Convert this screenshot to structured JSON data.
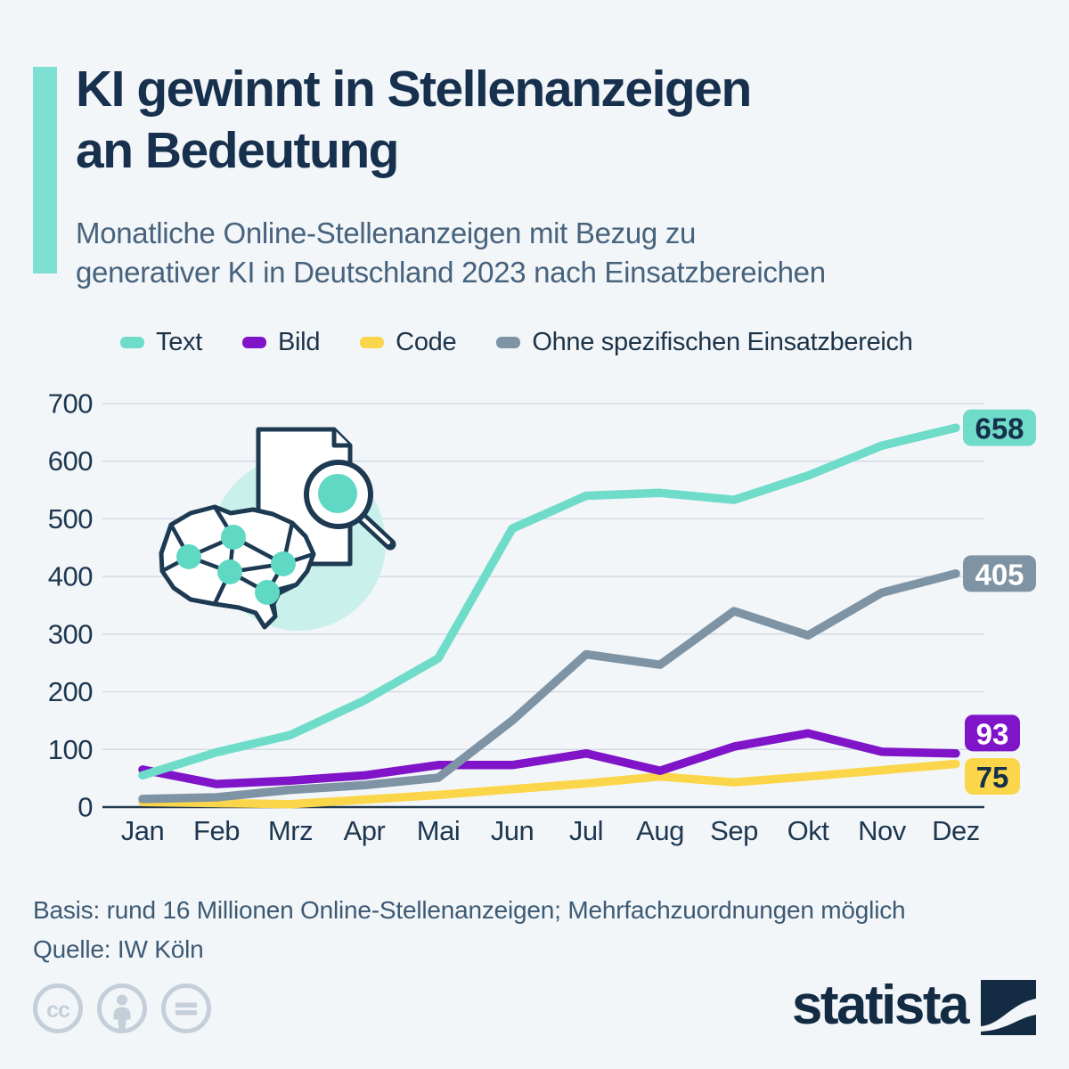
{
  "header": {
    "title_lines": [
      "KI gewinnt in Stellenanzeigen",
      "an Bedeutung"
    ],
    "subtitle_lines": [
      "Monatliche Online-Stellenanzeigen mit Bezug zu",
      "generativer KI in Deutschland 2023 nach Einsatzbereichen"
    ],
    "accent_color": "#7de0d2"
  },
  "chart_data": {
    "type": "line",
    "title": "KI gewinnt in Stellenanzeigen an Bedeutung",
    "subtitle": "Monatliche Online-Stellenanzeigen mit Bezug zu generativer KI in Deutschland 2023 nach Einsatzbereichen",
    "categories": [
      "Jan",
      "Feb",
      "Mrz",
      "Apr",
      "Mai",
      "Jun",
      "Jul",
      "Aug",
      "Sep",
      "Okt",
      "Nov",
      "Dez"
    ],
    "series": [
      {
        "name": "Text",
        "color": "#6fdcca",
        "badge_text_color": "#15304a",
        "values": [
          55,
          95,
          125,
          185,
          258,
          483,
          540,
          545,
          533,
          575,
          627,
          658
        ],
        "end_label": "658"
      },
      {
        "name": "Bild",
        "color": "#7f14c8",
        "badge_text_color": "#ffffff",
        "values": [
          65,
          40,
          46,
          55,
          73,
          73,
          93,
          63,
          105,
          128,
          96,
          93
        ],
        "end_label": "93"
      },
      {
        "name": "Code",
        "color": "#fbd64a",
        "badge_text_color": "#15304a",
        "values": [
          9,
          7,
          5,
          13,
          21,
          31,
          41,
          53,
          43,
          53,
          64,
          75
        ],
        "end_label": "75"
      },
      {
        "name": "Ohne spezifischen Einsatzbereich",
        "color": "#7e93a4",
        "badge_text_color": "#ffffff",
        "values": [
          14,
          17,
          30,
          38,
          51,
          150,
          265,
          247,
          340,
          298,
          372,
          405
        ],
        "end_label": "405"
      }
    ],
    "xlabel": "",
    "ylabel": "",
    "ylim": [
      0,
      700
    ],
    "y_ticks": [
      0,
      100,
      200,
      300,
      400,
      500,
      600,
      700
    ],
    "grid": true,
    "legend_position": "top"
  },
  "footer": {
    "basis": "Basis: rund 16 Millionen Online-Stellenanzeigen; Mehrfachzuordnungen möglich",
    "quelle": "Quelle: IW Köln"
  },
  "branding": {
    "logo_text": "statista"
  },
  "license": {
    "icons": [
      "cc-icon",
      "attribution-person-icon",
      "no-derivatives-equals-icon"
    ]
  },
  "colors": {
    "background": "#f2f6f9",
    "title_text": "#16304d",
    "subtitle_text": "#47627c",
    "axis_text": "#1e3750",
    "gridline": "#cdd5de",
    "baseline": "#22384f",
    "footer_text": "#3d5a74",
    "license_icon": "#c5cfd9",
    "logo": "#132c44",
    "illustration_outline": "#1d3a52",
    "illustration_circle": "#c9f0ea",
    "illustration_teal": "#5fd8c4"
  }
}
